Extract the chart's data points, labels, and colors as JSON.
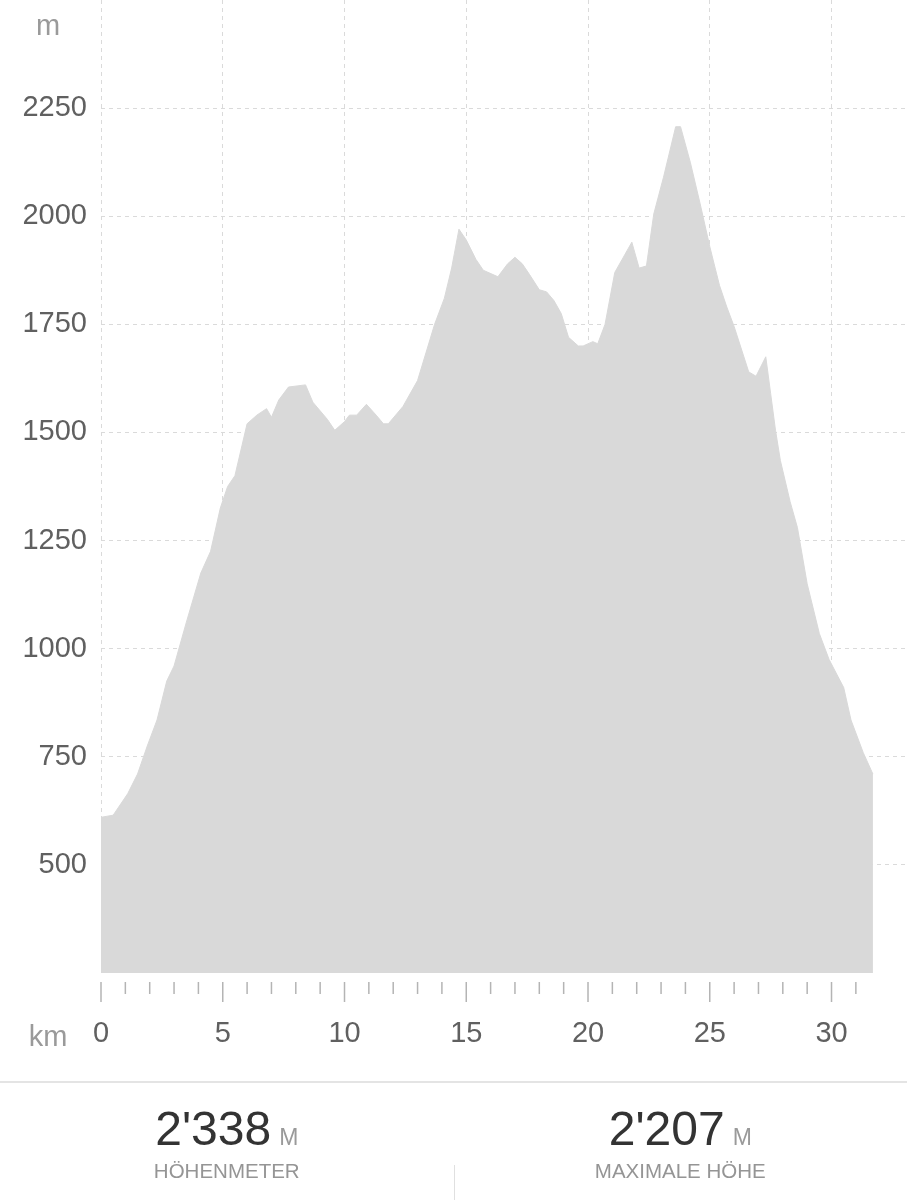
{
  "chart_data": {
    "type": "area",
    "xlabel": "km",
    "ylabel": "m",
    "x": [
      0,
      0.5,
      1.1,
      1.5,
      1.9,
      2.3,
      2.7,
      3.0,
      3.5,
      4.1,
      4.5,
      4.9,
      5.2,
      5.5,
      6.0,
      6.4,
      6.8,
      7.0,
      7.3,
      7.7,
      8.4,
      8.7,
      9.3,
      9.6,
      10.0,
      10.2,
      10.5,
      10.9,
      11.3,
      11.6,
      11.8,
      12.4,
      13.0,
      13.7,
      14.1,
      14.4,
      14.7,
      15.0,
      15.4,
      15.7,
      16.1,
      16.3,
      16.7,
      17.0,
      17.3,
      17.6,
      18.0,
      18.3,
      18.6,
      18.9,
      19.2,
      19.6,
      19.8,
      20.2,
      20.4,
      20.7,
      21.1,
      21.4,
      21.8,
      22.1,
      22.4,
      22.7,
      23.1,
      23.4,
      23.6,
      23.8,
      24.2,
      24.6,
      25.0,
      25.4,
      25.7,
      26.0,
      26.4,
      26.6,
      26.9,
      27.3,
      27.5,
      27.7,
      27.9,
      28.3,
      28.6,
      29.0,
      29.5,
      29.9,
      30.5,
      30.8,
      31.3,
      31.7
    ],
    "values": [
      610,
      615,
      665,
      710,
      775,
      835,
      925,
      960,
      1060,
      1175,
      1225,
      1325,
      1375,
      1400,
      1520,
      1540,
      1555,
      1535,
      1575,
      1605,
      1610,
      1570,
      1530,
      1505,
      1525,
      1540,
      1540,
      1565,
      1540,
      1520,
      1520,
      1560,
      1620,
      1750,
      1810,
      1880,
      1970,
      1945,
      1900,
      1875,
      1865,
      1860,
      1890,
      1905,
      1890,
      1865,
      1830,
      1825,
      1805,
      1775,
      1720,
      1700,
      1700,
      1710,
      1705,
      1750,
      1870,
      1900,
      1940,
      1880,
      1885,
      2005,
      2090,
      2160,
      2207,
      2207,
      2125,
      2030,
      1930,
      1840,
      1790,
      1745,
      1675,
      1640,
      1630,
      1675,
      1590,
      1505,
      1435,
      1340,
      1280,
      1150,
      1035,
      975,
      910,
      835,
      760,
      710
    ],
    "color": "#d9d9d9",
    "xlim": [
      0,
      33.1
    ],
    "ylim": [
      250,
      2500
    ],
    "xticks": [
      0,
      {
        "value": 1,
        "label": null
      },
      {
        "value": 2,
        "label": null
      },
      {
        "value": 3,
        "label": null
      },
      {
        "value": 4,
        "label": null
      },
      5,
      {
        "value": 6,
        "label": null
      },
      {
        "value": 7,
        "label": null
      },
      {
        "value": 8,
        "label": null
      },
      {
        "value": 9,
        "label": null
      },
      10,
      {
        "value": 11,
        "label": null
      },
      {
        "value": 12,
        "label": null
      },
      {
        "value": 13,
        "label": null
      },
      {
        "value": 14,
        "label": null
      },
      15,
      {
        "value": 16,
        "label": null
      },
      {
        "value": 17,
        "label": null
      },
      {
        "value": 18,
        "label": null
      },
      {
        "value": 19,
        "label": null
      },
      20,
      {
        "value": 21,
        "label": null
      },
      {
        "value": 22,
        "label": null
      },
      {
        "value": 23,
        "label": null
      },
      {
        "value": 24,
        "label": null
      },
      25,
      {
        "value": 26,
        "label": null
      },
      {
        "value": 27,
        "label": null
      },
      {
        "value": 28,
        "label": null
      },
      {
        "value": 29,
        "label": null
      },
      30,
      {
        "value": 31,
        "label": null
      }
    ],
    "yticks": [
      500,
      750,
      1000,
      1250,
      1500,
      1750,
      2000,
      2250
    ],
    "grid": true,
    "annotations": [
      "2'338",
      "M",
      "HÖHENMETER",
      "2'207",
      "M",
      "MAXIMALE HÖHE"
    ]
  }
}
